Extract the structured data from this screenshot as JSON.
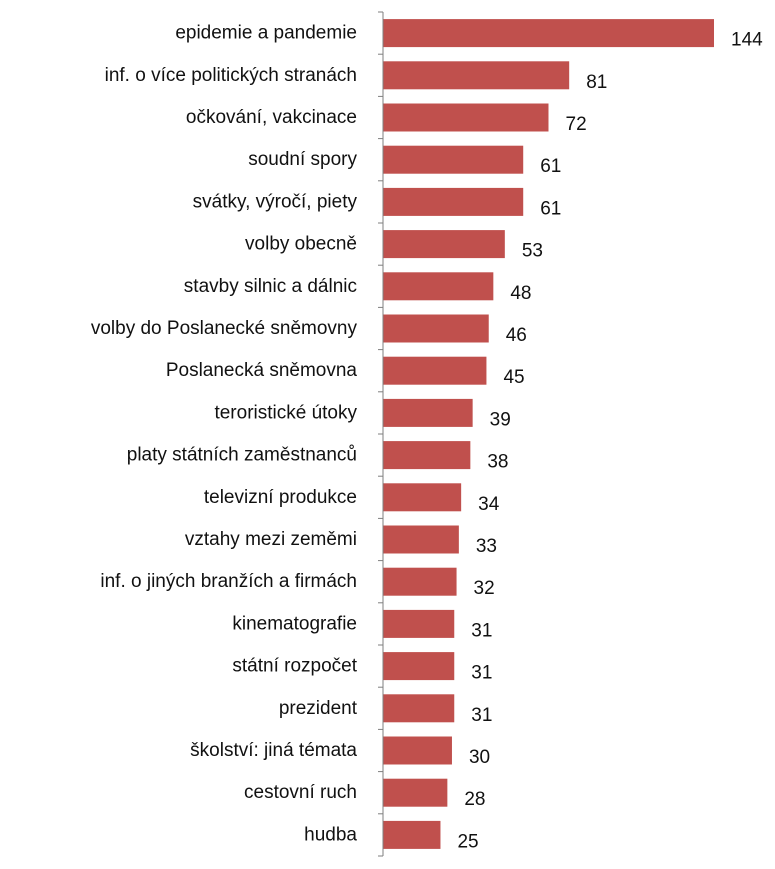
{
  "chart_data": {
    "type": "bar",
    "orientation": "horizontal",
    "categories": [
      "epidemie a pandemie",
      "inf. o více politických stranách",
      "očkování, vakcinace",
      "soudní spory",
      "svátky, výročí, piety",
      "volby obecně",
      "stavby silnic a dálnic",
      "volby do Poslanecké sněmovny",
      "Poslanecká sněmovna",
      "teroristické útoky",
      "platy státních zaměstnanců",
      "televizní produkce",
      "vztahy mezi zeměmi",
      "inf. o jiných branžích a firmách",
      "kinematografie",
      "státní rozpočet",
      "prezident",
      "školství: jiná témata",
      "cestovní ruch",
      "hudba"
    ],
    "values": [
      144,
      81,
      72,
      61,
      61,
      53,
      48,
      46,
      45,
      39,
      38,
      34,
      33,
      32,
      31,
      31,
      31,
      30,
      28,
      25
    ],
    "data_labels": [
      "144",
      "81",
      "72",
      "61",
      "61",
      "53",
      "48",
      "46",
      "45",
      "39",
      "38",
      "34",
      "33",
      "32",
      "31",
      "31",
      "31",
      "30",
      "28",
      "25"
    ],
    "xlim": [
      0,
      148
    ],
    "bar_color": "#c0504d",
    "grid": false,
    "legend": "none"
  }
}
